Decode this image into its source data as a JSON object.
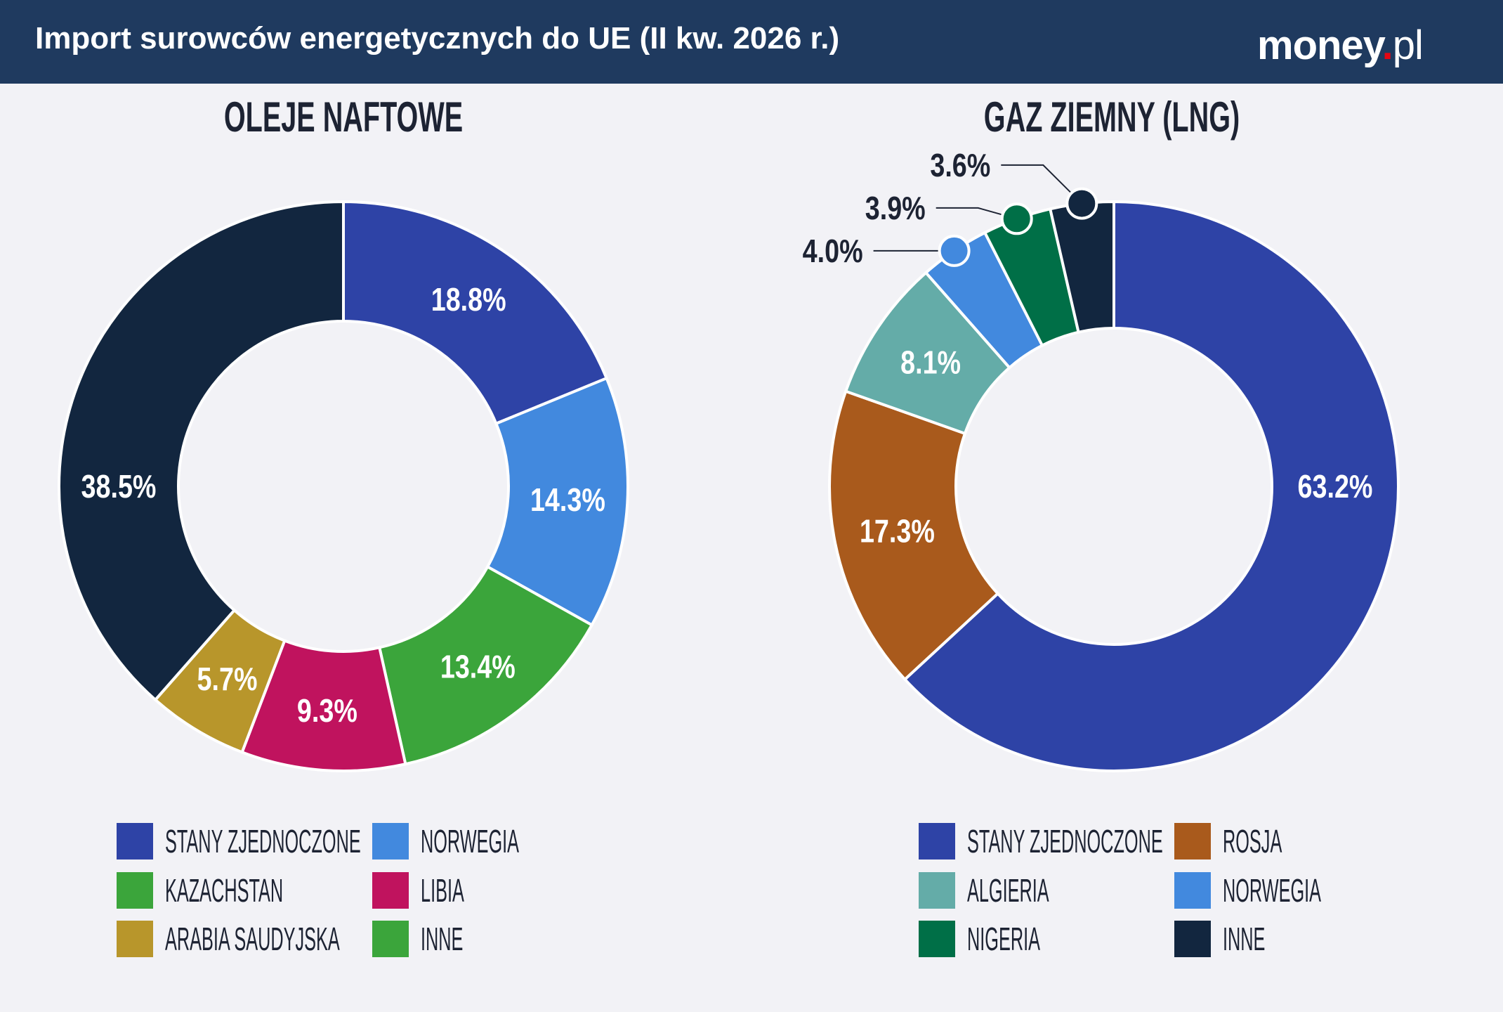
{
  "theme": {
    "header_bg": "#1f3a5f",
    "page_bg": "#f2f2f6",
    "text_dark": "#1d2333",
    "logo_accent": "#e30613"
  },
  "header": {
    "title": "Import surowców energetycznych do UE (II kw. 2026 r.)",
    "logo": {
      "main": "money",
      "dot": ".",
      "tld": "pl"
    }
  },
  "chart_data": [
    {
      "type": "pie",
      "title": "OLEJE NAFTOWE",
      "categories": [
        "STANY ZJEDNOCZONE",
        "NORWEGIA",
        "KAZACHSTAN",
        "LIBIA",
        "ARABIA SAUDYJSKA",
        "INNE"
      ],
      "values": [
        18.8,
        14.3,
        13.4,
        9.3,
        5.7,
        38.5
      ],
      "value_labels": [
        "18.8%",
        "14.3%",
        "13.4%",
        "9.3%",
        "5.7%",
        "38.5%"
      ],
      "slice_colors": [
        "#2e43a6",
        "#4289de",
        "#3ba53b",
        "#c0135e",
        "#b8962b",
        "#12263f"
      ],
      "legend_colors": [
        "#2e43a6",
        "#4289de",
        "#3ba53b",
        "#c0135e",
        "#b8962b",
        "#3ba53b"
      ],
      "legend_placement": "bottom"
    },
    {
      "type": "pie",
      "title": "GAZ ZIEMNY (LNG)",
      "categories": [
        "STANY ZJEDNOCZONE",
        "ROSJA",
        "ALGIERIA",
        "NORWEGIA",
        "NIGERIA",
        "INNE"
      ],
      "values": [
        63.2,
        17.3,
        8.1,
        4.0,
        3.9,
        3.6
      ],
      "value_labels": [
        "63.2%",
        "17.3%",
        "8.1%",
        "4.0%",
        "3.9%",
        "3.6%"
      ],
      "slice_colors": [
        "#2e43a6",
        "#a95a1c",
        "#64aca8",
        "#4289de",
        "#006f47",
        "#12263f"
      ],
      "legend_colors": [
        "#2e43a6",
        "#a95a1c",
        "#64aca8",
        "#4289de",
        "#006f47",
        "#12263f"
      ],
      "legend_placement": "bottom"
    }
  ]
}
